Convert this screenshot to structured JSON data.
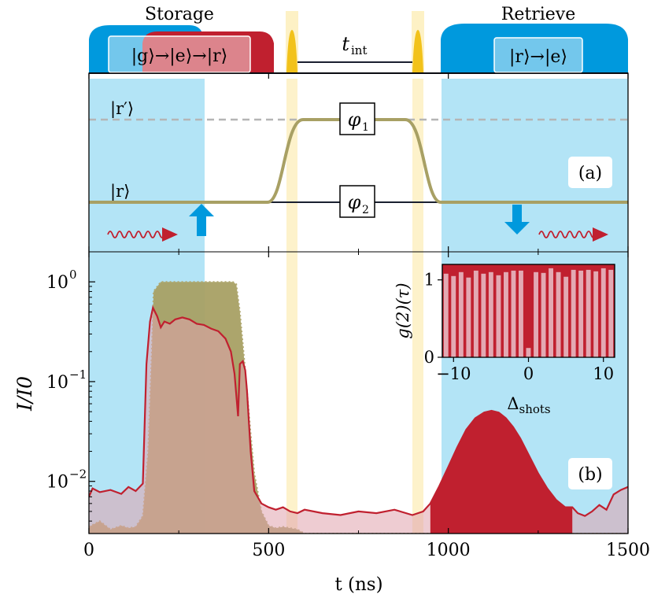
{
  "labels": {
    "storage": "Storage",
    "retrieve": "Retrieve",
    "t_int": "t",
    "t_int_sub": "int",
    "storage_transition": "|g⟩→|e⟩→|r⟩",
    "retrieve_transition": "|r⟩→|e⟩",
    "r_prime": "|r′⟩",
    "r_level": "|r⟩",
    "phi1": "φ",
    "phi1_sub": "1",
    "phi2": "φ",
    "phi2_sub": "2",
    "panel_a": "(a)",
    "panel_b": "(b)"
  },
  "colors": {
    "blue": "#0099dd",
    "light_blue": "#b3e4f6",
    "red": "#c0202f",
    "pink": "#e0a3ad",
    "yellow_pulse": "#f2c21a",
    "yellow_band": "#fdf1c5",
    "olive": "#a8a064",
    "dashed_gray": "#b5b5b5"
  },
  "chart_data": [
    {
      "type": "area",
      "panel": "(b)",
      "xlabel": "t (ns)",
      "ylabel": "I/I0",
      "yscale": "log",
      "xlim": [
        0,
        1500
      ],
      "ylim": [
        0.003,
        2.0
      ],
      "xticks": [
        0,
        500,
        1000,
        1500
      ],
      "xtick_labels": [
        "0",
        "500",
        "1000",
        "1500"
      ],
      "yticks": [
        0.01,
        0.1,
        1
      ],
      "ytick_labels": [
        "10^-2",
        "10^-1",
        "10^0"
      ],
      "shaded_regions": [
        {
          "name": "storage",
          "x": [
            0,
            320
          ]
        },
        {
          "name": "retrieve",
          "x": [
            980,
            1500
          ]
        },
        {
          "name": "pi-pulse-1",
          "x": [
            550,
            580
          ]
        },
        {
          "name": "pi-pulse-2",
          "x": [
            900,
            930
          ]
        }
      ],
      "series": [
        {
          "name": "input reference (dotted olive)",
          "t": [
            0,
            30,
            60,
            90,
            110,
            130,
            150,
            165,
            175,
            180,
            200,
            250,
            300,
            350,
            400,
            410,
            420,
            430,
            440,
            450,
            460,
            480,
            500,
            520,
            540,
            560,
            580,
            600,
            1500
          ],
          "I": [
            0.0035,
            0.004,
            0.0033,
            0.0036,
            0.0034,
            0.0035,
            0.0045,
            0.02,
            0.2,
            0.8,
            1.0,
            1.0,
            1.0,
            1.0,
            1.0,
            0.95,
            0.5,
            0.2,
            0.08,
            0.03,
            0.012,
            0.005,
            0.0036,
            0.0034,
            0.0035,
            0.0034,
            0.0033,
            0.003,
            0.003
          ]
        },
        {
          "name": "transmitted / retrieved signal (red)",
          "t": [
            0,
            10,
            30,
            60,
            90,
            110,
            130,
            150,
            160,
            170,
            178,
            190,
            200,
            210,
            225,
            240,
            260,
            280,
            300,
            320,
            340,
            360,
            380,
            395,
            405,
            415,
            420,
            428,
            435,
            440,
            445,
            450,
            460,
            480,
            500,
            520,
            540,
            560,
            580,
            600,
            650,
            700,
            750,
            800,
            850,
            900,
            930,
            950,
            975,
            1000,
            1025,
            1050,
            1075,
            1100,
            1120,
            1140,
            1160,
            1180,
            1200,
            1225,
            1250,
            1275,
            1300,
            1325,
            1345,
            1360,
            1380,
            1400,
            1420,
            1440,
            1460,
            1480,
            1500
          ],
          "I": [
            0.007,
            0.0085,
            0.0078,
            0.0082,
            0.0075,
            0.0088,
            0.008,
            0.0095,
            0.15,
            0.4,
            0.55,
            0.45,
            0.35,
            0.4,
            0.38,
            0.42,
            0.44,
            0.42,
            0.38,
            0.37,
            0.34,
            0.32,
            0.27,
            0.2,
            0.12,
            0.045,
            0.15,
            0.16,
            0.13,
            0.08,
            0.04,
            0.02,
            0.008,
            0.006,
            0.0055,
            0.0052,
            0.0055,
            0.005,
            0.0048,
            0.0052,
            0.0048,
            0.0046,
            0.005,
            0.0048,
            0.0052,
            0.0046,
            0.005,
            0.006,
            0.009,
            0.014,
            0.022,
            0.033,
            0.043,
            0.049,
            0.051,
            0.049,
            0.043,
            0.035,
            0.027,
            0.018,
            0.012,
            0.0085,
            0.0065,
            0.0055,
            0.0055,
            0.0048,
            0.0045,
            0.005,
            0.0058,
            0.0052,
            0.0074,
            0.0082,
            0.0088
          ]
        }
      ]
    },
    {
      "type": "bar",
      "panel": "inset",
      "xlabel": "Δshots",
      "ylabel": "g(2)(τ)",
      "xlim": [
        -11.5,
        11.5
      ],
      "ylim": [
        0,
        1.2
      ],
      "xticks": [
        -10,
        0,
        10
      ],
      "xtick_labels": [
        "−10",
        "0",
        "10"
      ],
      "yticks": [
        0,
        1
      ],
      "ytick_labels": [
        "0",
        "1"
      ],
      "x": [
        -11,
        -10,
        -9,
        -8,
        -7,
        -6,
        -5,
        -4,
        -3,
        -2,
        -1,
        0,
        1,
        2,
        3,
        4,
        5,
        6,
        7,
        8,
        9,
        10,
        11
      ],
      "values": [
        1.08,
        1.05,
        1.1,
        1.03,
        1.12,
        1.08,
        1.1,
        1.06,
        1.1,
        1.12,
        1.12,
        0.12,
        1.1,
        1.09,
        1.15,
        1.1,
        1.04,
        1.13,
        1.12,
        1.13,
        1.11,
        1.15,
        1.13
      ]
    }
  ]
}
